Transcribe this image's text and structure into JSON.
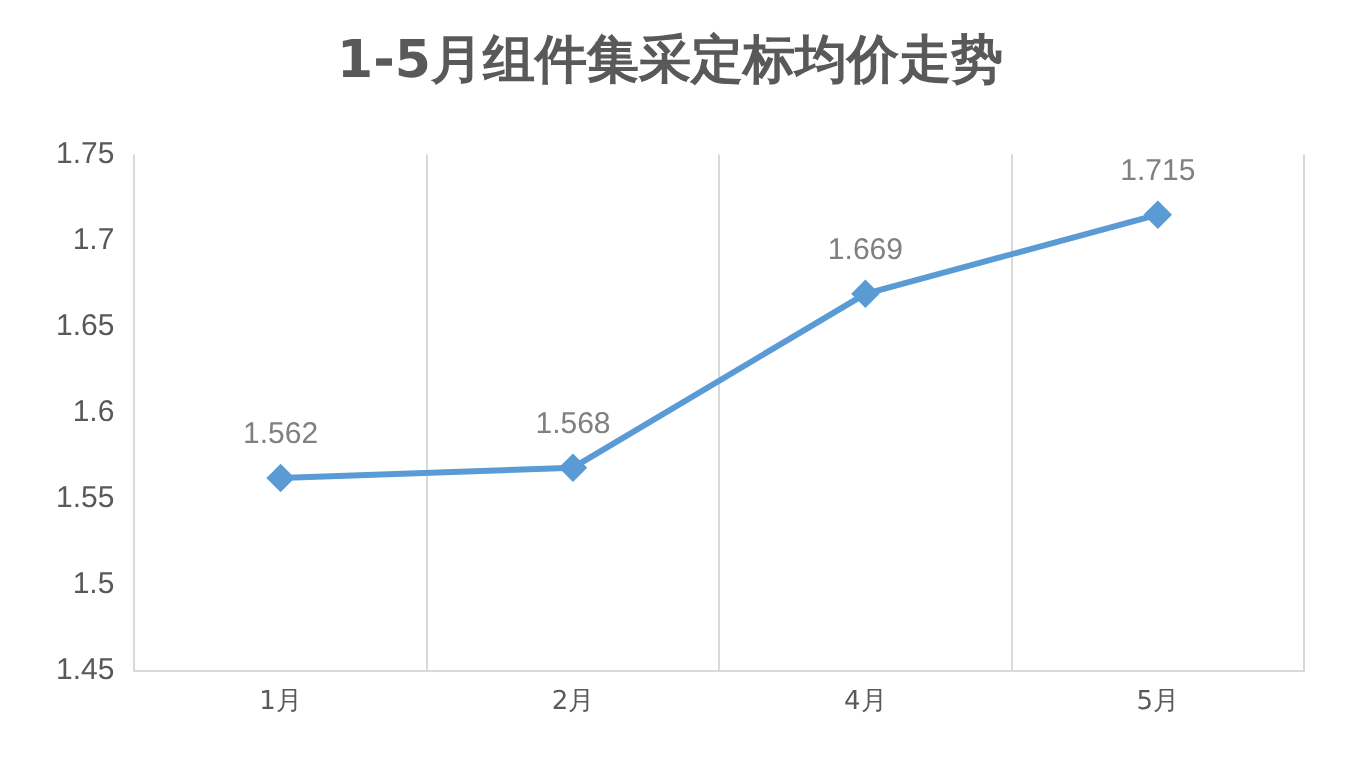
{
  "chart_data": {
    "type": "line",
    "title": "1-5月组件集采定标均价走势",
    "categories": [
      "1月",
      "2月",
      "4月",
      "5月"
    ],
    "series": [
      {
        "color": "#5b9bd5",
        "values": [
          1.562,
          1.568,
          1.669,
          1.715
        ]
      }
    ],
    "ylim": [
      1.45,
      1.75
    ],
    "yticks": [
      1.45,
      1.5,
      1.55,
      1.6,
      1.65,
      1.7,
      1.75
    ],
    "grid": "x",
    "legend": false,
    "marker": "diamond",
    "data_labels": true
  }
}
